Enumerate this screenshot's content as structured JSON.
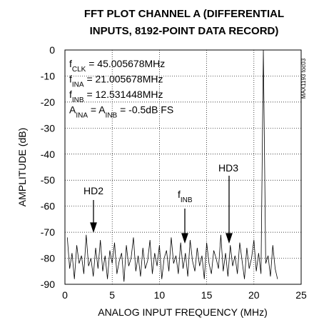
{
  "chart_data": {
    "type": "line",
    "title": "FFT PLOT CHANNEL A (DIFFERENTIAL",
    "subtitle": "INPUTS, 8192-POINT DATA RECORD)",
    "x_label": "ANALOG INPUT FREQUENCY (MHz)",
    "y_label": "AMPLITUDE (dB)",
    "note": "MAX1193 toc03",
    "annotations": [
      [
        "f",
        "CLK",
        " = 45.005678MHz"
      ],
      [
        "f",
        "INA",
        " = 21.005678MHz"
      ],
      [
        "f",
        "INB",
        " = 12.531448MHz"
      ],
      [
        "A",
        "INA",
        " = A",
        "INB",
        " = -0.5dB FS"
      ]
    ],
    "markers": [
      [
        "HD2"
      ],
      [
        "f",
        "INB"
      ],
      [
        "HD3"
      ]
    ],
    "xlim": [
      0,
      25
    ],
    "xticks": [
      0,
      5,
      10,
      15,
      20,
      25
    ],
    "ylim": [
      -90,
      0
    ],
    "yticks": [
      0,
      -10,
      -20,
      -30,
      -40,
      -50,
      -60,
      -70,
      -80,
      -90
    ],
    "grid": true,
    "series": [
      {
        "color": "#000000",
        "x": [
          0.25,
          0.5,
          0.75,
          1,
          1.25,
          1.5,
          1.75,
          2,
          2.25,
          2.5,
          2.75,
          3,
          3.25,
          3.5,
          3.75,
          4,
          4.25,
          4.5,
          4.75,
          5,
          5.25,
          5.5,
          5.75,
          6,
          6.25,
          6.5,
          6.75,
          7,
          7.25,
          7.5,
          7.75,
          8,
          8.25,
          8.5,
          8.75,
          9,
          9.25,
          9.5,
          9.75,
          10,
          10.25,
          10.5,
          10.75,
          11,
          11.25,
          11.5,
          11.75,
          12,
          12.25,
          12.5,
          12.75,
          13,
          13.25,
          13.5,
          13.75,
          14,
          14.25,
          14.5,
          14.75,
          15,
          15.25,
          15.5,
          15.75,
          16,
          16.25,
          16.5,
          16.75,
          17,
          17.25,
          17.5,
          17.75,
          18,
          18.25,
          18.5,
          18.75,
          19,
          19.25,
          19.5,
          19.75,
          20,
          20.25,
          20.5,
          20.75,
          21,
          21.25,
          21.5,
          21.75,
          22,
          22.25,
          22.5
        ],
        "values": [
          -72,
          -84,
          -78,
          -88,
          -75,
          -82,
          -79,
          -86,
          -71,
          -83,
          -80,
          -87,
          -76,
          -84,
          -73,
          -85,
          -79,
          -88,
          -77,
          -82,
          -74,
          -86,
          -81,
          -78,
          -89,
          -75,
          -83,
          -80,
          -72,
          -85,
          -79,
          -87,
          -76,
          -84,
          -81,
          -73,
          -86,
          -78,
          -83,
          -75,
          -88,
          -80,
          -77,
          -85,
          -72,
          -82,
          -79,
          -86,
          -74,
          -84,
          -78,
          -87,
          -73,
          -81,
          -85,
          -76,
          -83,
          -79,
          -88,
          -74,
          -82,
          -86,
          -77,
          -80,
          -84,
          -71,
          -85,
          -78,
          -87,
          -75,
          -83,
          -79,
          -86,
          -74,
          -81,
          -88,
          -76,
          -84,
          -80,
          -73,
          -85,
          -78,
          -86,
          0,
          -82,
          -79,
          -87,
          -75,
          -84,
          -88
        ]
      }
    ]
  }
}
